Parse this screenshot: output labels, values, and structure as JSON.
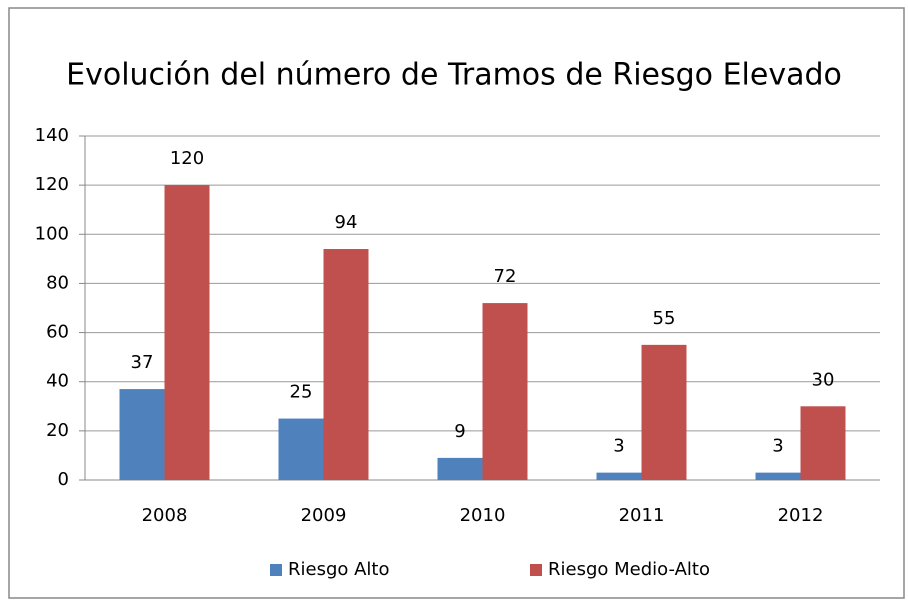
{
  "chart_data": {
    "type": "bar",
    "title": "Evolución del número de Tramos de Riesgo Elevado",
    "categories": [
      "2008",
      "2009",
      "2010",
      "2011",
      "2012"
    ],
    "series": [
      {
        "name": "Riesgo Alto",
        "color": "#4f81bd",
        "values": [
          37,
          25,
          9,
          3,
          3
        ]
      },
      {
        "name": "Riesgo Medio-Alto",
        "color": "#c0504d",
        "values": [
          120,
          94,
          72,
          55,
          30
        ]
      }
    ],
    "ylim": [
      0,
      140
    ],
    "yticks": [
      0,
      20,
      40,
      60,
      80,
      100,
      120,
      140
    ],
    "grid": true,
    "legend": "bottom"
  }
}
